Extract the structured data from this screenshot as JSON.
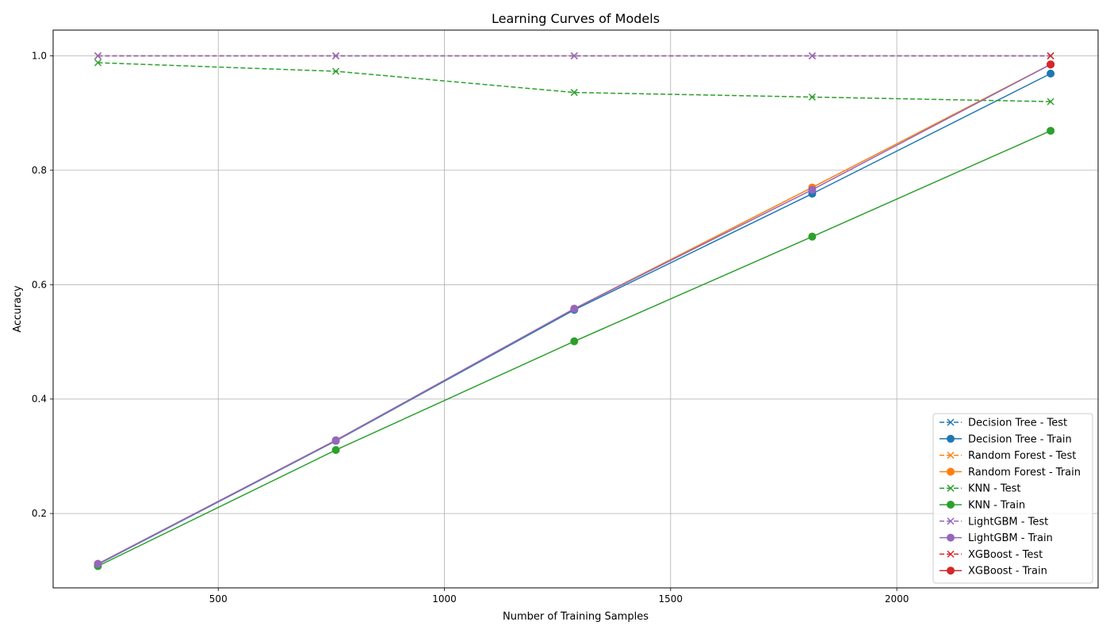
{
  "chart_data": {
    "type": "line",
    "title": "Learning Curves of Models",
    "xlabel": "Number of Training Samples",
    "ylabel": "Accuracy",
    "x": [
      234,
      760,
      1287,
      1813,
      2340
    ],
    "xlim": [
      135,
      2445
    ],
    "ylim": [
      0.07,
      1.045
    ],
    "xticks": [
      500,
      1000,
      1500,
      2000
    ],
    "yticks": [
      0.2,
      0.4,
      0.6,
      0.8,
      1.0
    ],
    "xtick_labels": [
      "500",
      "1000",
      "1500",
      "2000"
    ],
    "ytick_labels": [
      "0.2",
      "0.4",
      "0.6",
      "0.8",
      "1.0"
    ],
    "grid": true,
    "legend_position": "lower-right",
    "series": [
      {
        "name": "Decision Tree - Test",
        "color": "#1f77b4",
        "style": "dashed",
        "marker": "x",
        "values": [
          1.0,
          1.0,
          1.0,
          1.0,
          1.0
        ]
      },
      {
        "name": "Decision Tree - Train",
        "color": "#1f77b4",
        "style": "solid",
        "marker": "circle",
        "values": [
          0.111,
          0.327,
          0.556,
          0.759,
          0.969
        ]
      },
      {
        "name": "Random Forest - Test",
        "color": "#ff7f0e",
        "style": "dashed",
        "marker": "x",
        "values": [
          1.0,
          1.0,
          1.0,
          1.0,
          1.0
        ]
      },
      {
        "name": "Random Forest - Train",
        "color": "#ff7f0e",
        "style": "solid",
        "marker": "circle",
        "values": [
          0.112,
          0.328,
          0.558,
          0.77,
          0.985
        ]
      },
      {
        "name": "KNN - Test",
        "color": "#2ca02c",
        "style": "dashed",
        "marker": "x",
        "values": [
          0.988,
          0.973,
          0.936,
          0.928,
          0.92
        ]
      },
      {
        "name": "KNN - Train",
        "color": "#2ca02c",
        "style": "solid",
        "marker": "circle",
        "values": [
          0.108,
          0.311,
          0.501,
          0.684,
          0.869
        ]
      },
      {
        "name": "LightGBM - Test",
        "color": "#9467bd",
        "style": "dashed",
        "marker": "x",
        "values": [
          1.0,
          1.0,
          1.0,
          1.0,
          1.0
        ]
      },
      {
        "name": "LightGBM - Train",
        "color": "#9467bd",
        "style": "solid",
        "marker": "circle",
        "values": [
          0.112,
          0.328,
          0.558,
          0.766,
          0.985
        ]
      },
      {
        "name": "XGBoost - Test",
        "color": "#d62728",
        "style": "dashed",
        "marker": "x",
        "values": [
          null,
          null,
          null,
          null,
          1.0
        ]
      },
      {
        "name": "XGBoost - Train",
        "color": "#d62728",
        "style": "solid",
        "marker": "circle",
        "values": [
          null,
          null,
          null,
          null,
          0.985
        ]
      }
    ]
  }
}
